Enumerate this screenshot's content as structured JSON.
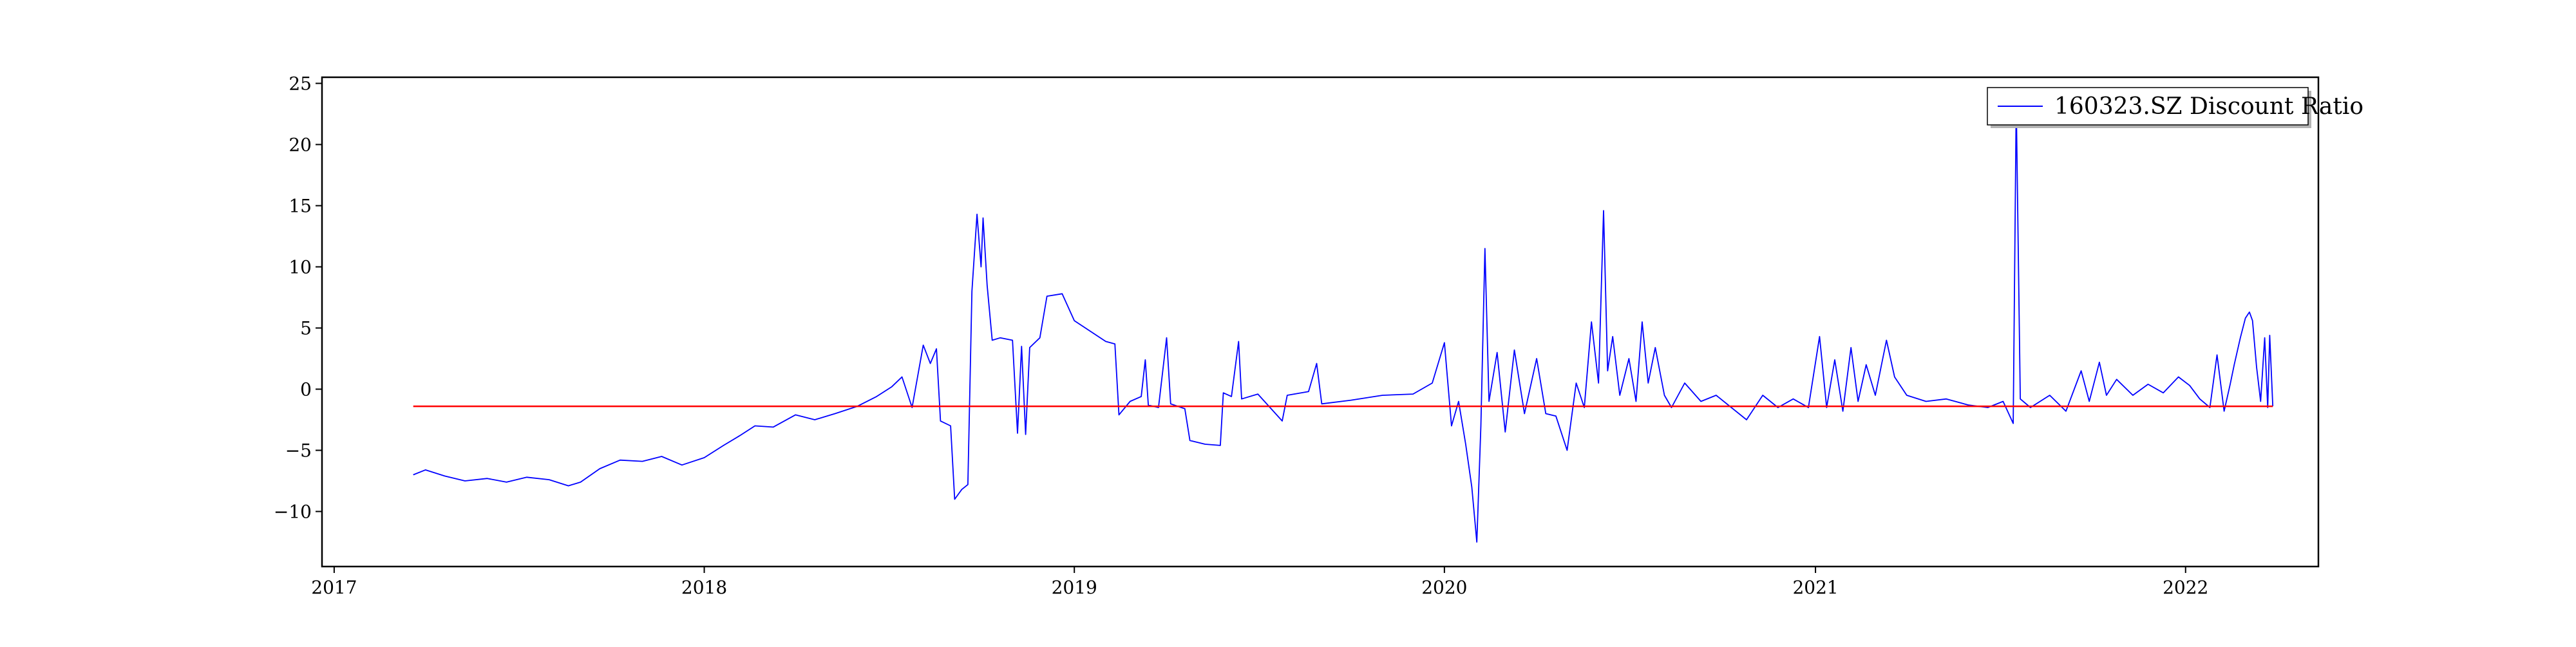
{
  "chart_data": {
    "type": "line",
    "title": "",
    "xlabel": "",
    "ylabel": "",
    "xlim": [
      "2016-12-20",
      "2022-05-12"
    ],
    "ylim": [
      -14.5,
      25.5
    ],
    "x_ticks": [
      "2017",
      "2018",
      "2019",
      "2020",
      "2021",
      "2022"
    ],
    "y_ticks": [
      -10,
      -5,
      0,
      5,
      10,
      15,
      20,
      25
    ],
    "grid": false,
    "legend_position": "top-right",
    "series": [
      {
        "name": "160323.SZ Discount Ratio",
        "color": "#0000ff",
        "points": [
          [
            "2017-03-20",
            -7.0
          ],
          [
            "2017-04-01",
            -6.6
          ],
          [
            "2017-04-20",
            -7.1
          ],
          [
            "2017-05-10",
            -7.5
          ],
          [
            "2017-06-01",
            -7.3
          ],
          [
            "2017-06-20",
            -7.6
          ],
          [
            "2017-07-10",
            -7.2
          ],
          [
            "2017-08-01",
            -7.4
          ],
          [
            "2017-08-20",
            -7.9
          ],
          [
            "2017-09-01",
            -7.6
          ],
          [
            "2017-09-20",
            -6.5
          ],
          [
            "2017-10-10",
            -5.8
          ],
          [
            "2017-11-01",
            -5.9
          ],
          [
            "2017-11-20",
            -5.5
          ],
          [
            "2017-12-10",
            -6.2
          ],
          [
            "2018-01-01",
            -5.6
          ],
          [
            "2018-01-20",
            -4.6
          ],
          [
            "2018-02-05",
            -3.8
          ],
          [
            "2018-02-20",
            -3.0
          ],
          [
            "2018-03-10",
            -3.1
          ],
          [
            "2018-04-01",
            -2.1
          ],
          [
            "2018-04-20",
            -2.5
          ],
          [
            "2018-05-10",
            -2.0
          ],
          [
            "2018-06-01",
            -1.4
          ],
          [
            "2018-06-20",
            -0.6
          ],
          [
            "2018-07-05",
            0.2
          ],
          [
            "2018-07-15",
            1.0
          ],
          [
            "2018-07-25",
            -1.5
          ],
          [
            "2018-08-05",
            3.6
          ],
          [
            "2018-08-12",
            2.1
          ],
          [
            "2018-08-18",
            3.3
          ],
          [
            "2018-08-22",
            -2.6
          ],
          [
            "2018-09-01",
            -3.0
          ],
          [
            "2018-09-05",
            -9.0
          ],
          [
            "2018-09-12",
            -8.2
          ],
          [
            "2018-09-18",
            -7.8
          ],
          [
            "2018-09-22",
            8.0
          ],
          [
            "2018-09-27",
            14.3
          ],
          [
            "2018-10-01",
            10.0
          ],
          [
            "2018-10-03",
            14.0
          ],
          [
            "2018-10-07",
            8.5
          ],
          [
            "2018-10-12",
            4.0
          ],
          [
            "2018-10-20",
            4.2
          ],
          [
            "2018-11-01",
            4.0
          ],
          [
            "2018-11-06",
            -3.6
          ],
          [
            "2018-11-10",
            3.5
          ],
          [
            "2018-11-14",
            -3.7
          ],
          [
            "2018-11-18",
            3.4
          ],
          [
            "2018-11-28",
            4.2
          ],
          [
            "2018-12-05",
            7.6
          ],
          [
            "2018-12-20",
            7.8
          ],
          [
            "2019-01-01",
            5.6
          ],
          [
            "2019-02-01",
            3.9
          ],
          [
            "2019-02-10",
            3.7
          ],
          [
            "2019-02-14",
            -2.1
          ],
          [
            "2019-02-25",
            -1.0
          ],
          [
            "2019-03-08",
            -0.6
          ],
          [
            "2019-03-12",
            2.4
          ],
          [
            "2019-03-15",
            -1.3
          ],
          [
            "2019-03-25",
            -1.5
          ],
          [
            "2019-04-02",
            4.2
          ],
          [
            "2019-04-06",
            -1.2
          ],
          [
            "2019-04-20",
            -1.6
          ],
          [
            "2019-04-25",
            -4.2
          ],
          [
            "2019-05-10",
            -4.5
          ],
          [
            "2019-05-25",
            -4.6
          ],
          [
            "2019-05-28",
            -0.3
          ],
          [
            "2019-06-05",
            -0.6
          ],
          [
            "2019-06-12",
            3.9
          ],
          [
            "2019-06-15",
            -0.8
          ],
          [
            "2019-07-01",
            -0.4
          ],
          [
            "2019-07-25",
            -2.6
          ],
          [
            "2019-07-30",
            -0.5
          ],
          [
            "2019-08-20",
            -0.2
          ],
          [
            "2019-08-28",
            2.1
          ],
          [
            "2019-09-02",
            -1.2
          ],
          [
            "2019-10-01",
            -0.9
          ],
          [
            "2019-11-01",
            -0.5
          ],
          [
            "2019-12-01",
            -0.4
          ],
          [
            "2019-12-20",
            0.5
          ],
          [
            "2020-01-01",
            3.8
          ],
          [
            "2020-01-08",
            -3.0
          ],
          [
            "2020-01-15",
            -1.0
          ],
          [
            "2020-01-22",
            -4.5
          ],
          [
            "2020-01-28",
            -8.0
          ],
          [
            "2020-02-02",
            -12.5
          ],
          [
            "2020-02-06",
            -3.0
          ],
          [
            "2020-02-10",
            11.5
          ],
          [
            "2020-02-14",
            -1.0
          ],
          [
            "2020-02-22",
            3.0
          ],
          [
            "2020-03-01",
            -3.5
          ],
          [
            "2020-03-10",
            3.2
          ],
          [
            "2020-03-20",
            -2.0
          ],
          [
            "2020-04-01",
            2.5
          ],
          [
            "2020-04-10",
            -2.0
          ],
          [
            "2020-04-20",
            -2.2
          ],
          [
            "2020-05-01",
            -5.0
          ],
          [
            "2020-05-10",
            0.5
          ],
          [
            "2020-05-18",
            -1.5
          ],
          [
            "2020-05-25",
            5.5
          ],
          [
            "2020-06-01",
            0.5
          ],
          [
            "2020-06-06",
            14.6
          ],
          [
            "2020-06-10",
            1.5
          ],
          [
            "2020-06-15",
            4.3
          ],
          [
            "2020-06-22",
            -0.5
          ],
          [
            "2020-07-01",
            2.5
          ],
          [
            "2020-07-08",
            -1.0
          ],
          [
            "2020-07-14",
            5.5
          ],
          [
            "2020-07-20",
            0.5
          ],
          [
            "2020-07-27",
            3.4
          ],
          [
            "2020-08-05",
            -0.5
          ],
          [
            "2020-08-12",
            -1.5
          ],
          [
            "2020-08-25",
            0.5
          ],
          [
            "2020-09-10",
            -1.0
          ],
          [
            "2020-09-25",
            -0.5
          ],
          [
            "2020-10-10",
            -1.5
          ],
          [
            "2020-10-25",
            -2.5
          ],
          [
            "2020-11-10",
            -0.5
          ],
          [
            "2020-11-25",
            -1.5
          ],
          [
            "2020-12-10",
            -0.8
          ],
          [
            "2020-12-25",
            -1.5
          ],
          [
            "2021-01-05",
            4.3
          ],
          [
            "2021-01-12",
            -1.5
          ],
          [
            "2021-01-20",
            2.4
          ],
          [
            "2021-01-28",
            -1.8
          ],
          [
            "2021-02-05",
            3.4
          ],
          [
            "2021-02-12",
            -1.0
          ],
          [
            "2021-02-20",
            2.0
          ],
          [
            "2021-03-01",
            -0.5
          ],
          [
            "2021-03-12",
            4.0
          ],
          [
            "2021-03-20",
            1.0
          ],
          [
            "2021-04-01",
            -0.5
          ],
          [
            "2021-04-20",
            -1.0
          ],
          [
            "2021-05-10",
            -0.8
          ],
          [
            "2021-06-01",
            -1.3
          ],
          [
            "2021-06-20",
            -1.5
          ],
          [
            "2021-07-05",
            -1.0
          ],
          [
            "2021-07-15",
            -2.8
          ],
          [
            "2021-07-18",
            23.5
          ],
          [
            "2021-07-22",
            -0.8
          ],
          [
            "2021-08-01",
            -1.5
          ],
          [
            "2021-08-20",
            -0.5
          ],
          [
            "2021-09-05",
            -1.8
          ],
          [
            "2021-09-20",
            1.5
          ],
          [
            "2021-09-28",
            -1.0
          ],
          [
            "2021-10-08",
            2.2
          ],
          [
            "2021-10-15",
            -0.5
          ],
          [
            "2021-10-25",
            0.8
          ],
          [
            "2021-11-10",
            -0.5
          ],
          [
            "2021-11-25",
            0.4
          ],
          [
            "2021-12-10",
            -0.3
          ],
          [
            "2021-12-25",
            1.0
          ],
          [
            "2022-01-05",
            0.3
          ],
          [
            "2022-01-15",
            -0.8
          ],
          [
            "2022-01-25",
            -1.5
          ],
          [
            "2022-02-01",
            2.8
          ],
          [
            "2022-02-08",
            -1.8
          ],
          [
            "2022-02-14",
            0.4
          ],
          [
            "2022-02-18",
            2.0
          ],
          [
            "2022-02-24",
            4.2
          ],
          [
            "2022-03-01",
            5.8
          ],
          [
            "2022-03-05",
            6.3
          ],
          [
            "2022-03-08",
            5.6
          ],
          [
            "2022-03-12",
            1.8
          ],
          [
            "2022-03-16",
            -1.0
          ],
          [
            "2022-03-20",
            4.2
          ],
          [
            "2022-03-23",
            -1.5
          ],
          [
            "2022-03-25",
            4.4
          ],
          [
            "2022-03-28",
            -1.4
          ]
        ]
      },
      {
        "color": "#ff0000",
        "points": [
          [
            "2017-03-20",
            -1.4
          ],
          [
            "2022-03-28",
            -1.4
          ]
        ]
      }
    ]
  }
}
